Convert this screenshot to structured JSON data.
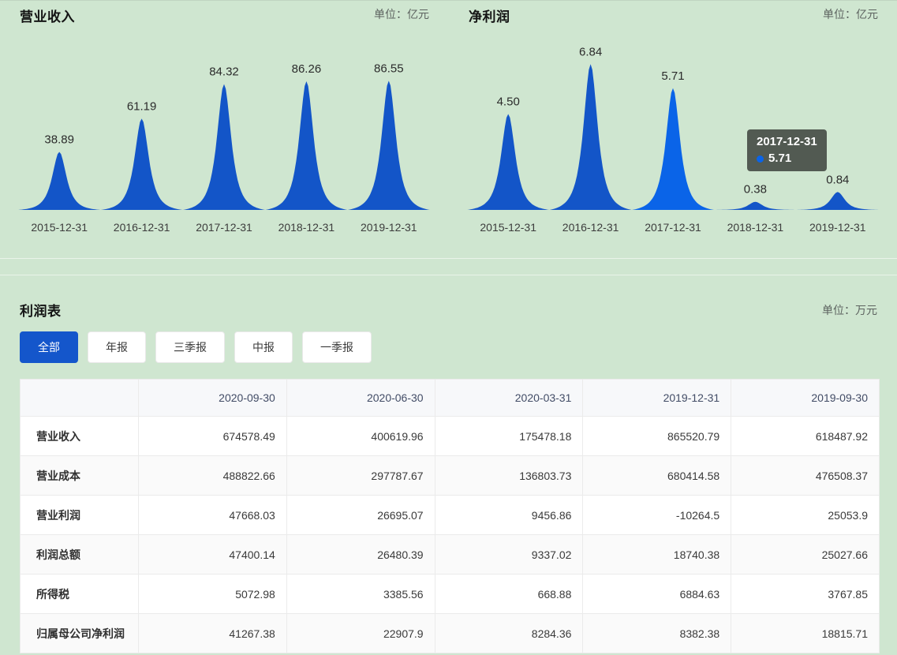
{
  "colors": {
    "background": "#cfe6d0",
    "peak": "#1355c8",
    "peak_highlight": "#0a64e8",
    "accent": "#1456cb",
    "tooltip_bg": "rgba(54,58,54,0.82)"
  },
  "chart_data": [
    {
      "type": "area",
      "title": "营业收入",
      "unit_label": "单位：亿元",
      "categories": [
        "2015-12-31",
        "2016-12-31",
        "2017-12-31",
        "2018-12-31",
        "2019-12-31"
      ],
      "values": [
        38.89,
        61.19,
        84.32,
        86.26,
        86.55
      ],
      "value_labels": [
        "38.89",
        "61.19",
        "84.32",
        "86.26",
        "86.55"
      ],
      "ylim": [
        0,
        100
      ],
      "grid": false,
      "legend": false,
      "highlight_index": -1,
      "tooltip": null
    },
    {
      "type": "area",
      "title": "净利润",
      "unit_label": "单位：亿元",
      "categories": [
        "2015-12-31",
        "2016-12-31",
        "2017-12-31",
        "2018-12-31",
        "2019-12-31"
      ],
      "values": [
        4.5,
        6.84,
        5.71,
        0.38,
        0.84
      ],
      "value_labels": [
        "4.50",
        "6.84",
        "5.71",
        "0.38",
        "0.84"
      ],
      "ylim": [
        0,
        7
      ],
      "grid": false,
      "legend": false,
      "highlight_index": 2,
      "tooltip": {
        "date": "2017-12-31",
        "value": "5.71"
      }
    }
  ],
  "profit_table": {
    "title": "利润表",
    "unit_label": "单位：万元",
    "filters": [
      "全部",
      "年报",
      "三季报",
      "中报",
      "一季报"
    ],
    "active_filter": 0,
    "columns": [
      "2020-09-30",
      "2020-06-30",
      "2020-03-31",
      "2019-12-31",
      "2019-09-30"
    ],
    "rows": [
      {
        "label": "营业收入",
        "values": [
          "674578.49",
          "400619.96",
          "175478.18",
          "865520.79",
          "618487.92"
        ]
      },
      {
        "label": "营业成本",
        "values": [
          "488822.66",
          "297787.67",
          "136803.73",
          "680414.58",
          "476508.37"
        ]
      },
      {
        "label": "营业利润",
        "values": [
          "47668.03",
          "26695.07",
          "9456.86",
          "-10264.5",
          "25053.9"
        ]
      },
      {
        "label": "利润总额",
        "values": [
          "47400.14",
          "26480.39",
          "9337.02",
          "18740.38",
          "25027.66"
        ]
      },
      {
        "label": "所得税",
        "values": [
          "5072.98",
          "3385.56",
          "668.88",
          "6884.63",
          "3767.85"
        ]
      },
      {
        "label": "归属母公司净利润",
        "values": [
          "41267.38",
          "22907.9",
          "8284.36",
          "8382.38",
          "18815.71"
        ]
      }
    ]
  }
}
